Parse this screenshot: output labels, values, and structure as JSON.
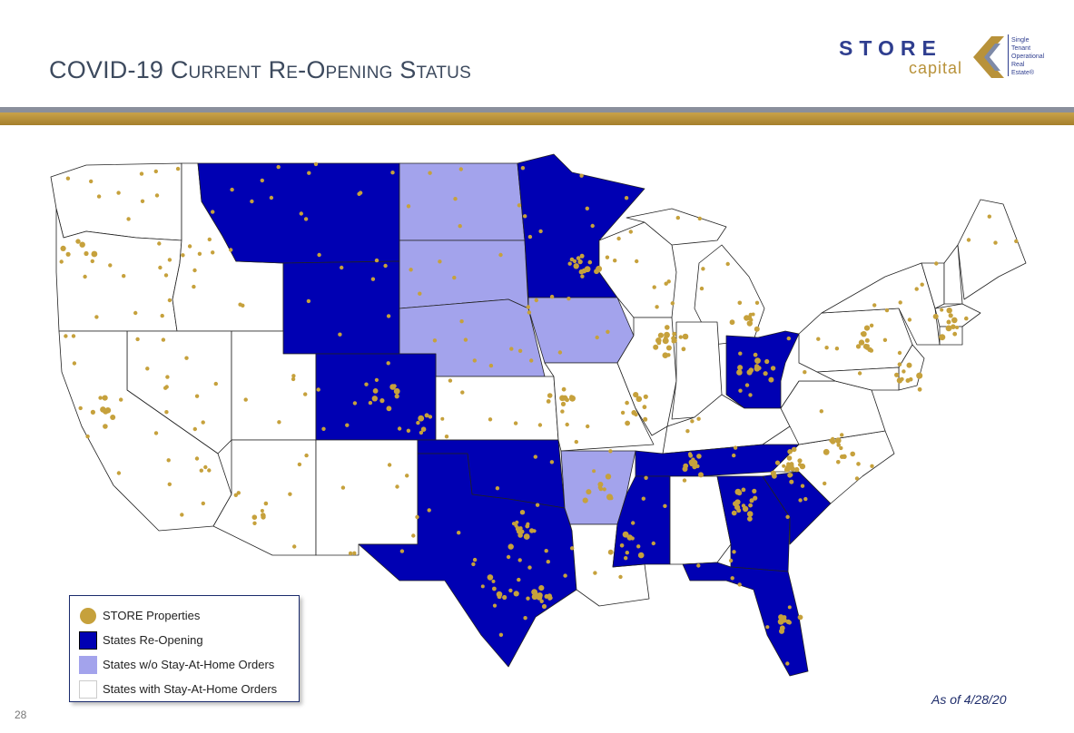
{
  "header": {
    "title": "COVID-19 Current Re-Opening Status"
  },
  "logo": {
    "store": "STORE",
    "capital": "capital",
    "tagline": [
      "Single",
      "Tenant",
      "Operational",
      "Real",
      "Estate®"
    ]
  },
  "colors": {
    "reopening": "#0000b3",
    "no_order": "#a3a3ec",
    "with_order": "#ffffff",
    "property": "#c6a13c",
    "gold_band": "#b8923a",
    "title": "#3d4a5e"
  },
  "legend": {
    "properties": "STORE Properties",
    "reopening": "States Re-Opening",
    "no_order": "States w/o Stay-At-Home Orders",
    "with_order": "States with Stay-At-Home Orders"
  },
  "state_status": {
    "reopening": [
      "MT",
      "WY",
      "CO",
      "MN",
      "OH",
      "OK",
      "TX",
      "MS",
      "TN",
      "GA",
      "SC",
      "FL panhandle"
    ],
    "no_order": [
      "ND",
      "SD",
      "NE",
      "IA",
      "AR"
    ],
    "with_order": [
      "WA",
      "OR",
      "ID",
      "NV",
      "CA",
      "UT",
      "AZ",
      "NM",
      "KS",
      "MO",
      "WI",
      "IL",
      "MI",
      "IN",
      "KY",
      "LA",
      "AL",
      "NC",
      "VA",
      "WV",
      "PA",
      "NY",
      "ME",
      "NH",
      "VT",
      "MA",
      "NJ"
    ]
  },
  "footer": {
    "as_of": "As of 4/28/20",
    "page": "28"
  }
}
